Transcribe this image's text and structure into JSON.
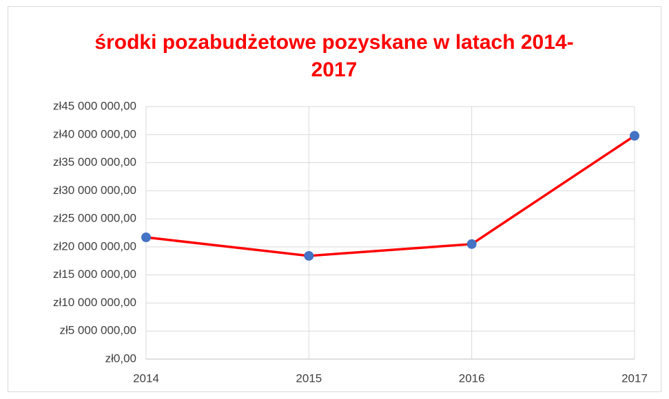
{
  "chart_data": {
    "type": "line",
    "title": "środki pozabudżetowe pozyskane w latach 2014-2017",
    "x": [
      2014,
      2015,
      2016,
      2017
    ],
    "xlim": [
      2014,
      2017
    ],
    "xticks": [
      2014,
      2015,
      2016,
      2017
    ],
    "series": [
      {
        "name": "środki",
        "color": "#ff0000",
        "marker_color": "#4472c4",
        "values": [
          21700000,
          18400000,
          20500000,
          39800000
        ]
      }
    ],
    "ylim": [
      0,
      45000000
    ],
    "yticks": [
      {
        "value": 0,
        "label": "zł0,00"
      },
      {
        "value": 5000000,
        "label": "zł5 000 000,00"
      },
      {
        "value": 10000000,
        "label": "zł10 000 000,00"
      },
      {
        "value": 15000000,
        "label": "zł15 000 000,00"
      },
      {
        "value": 20000000,
        "label": "zł20 000 000,00"
      },
      {
        "value": 25000000,
        "label": "zł25 000 000,00"
      },
      {
        "value": 30000000,
        "label": "zł30 000 000,00"
      },
      {
        "value": 35000000,
        "label": "zł35 000 000,00"
      },
      {
        "value": 40000000,
        "label": "zł40 000 000,00"
      },
      {
        "value": 45000000,
        "label": "zł45 000 000,00"
      }
    ],
    "grid": true
  }
}
